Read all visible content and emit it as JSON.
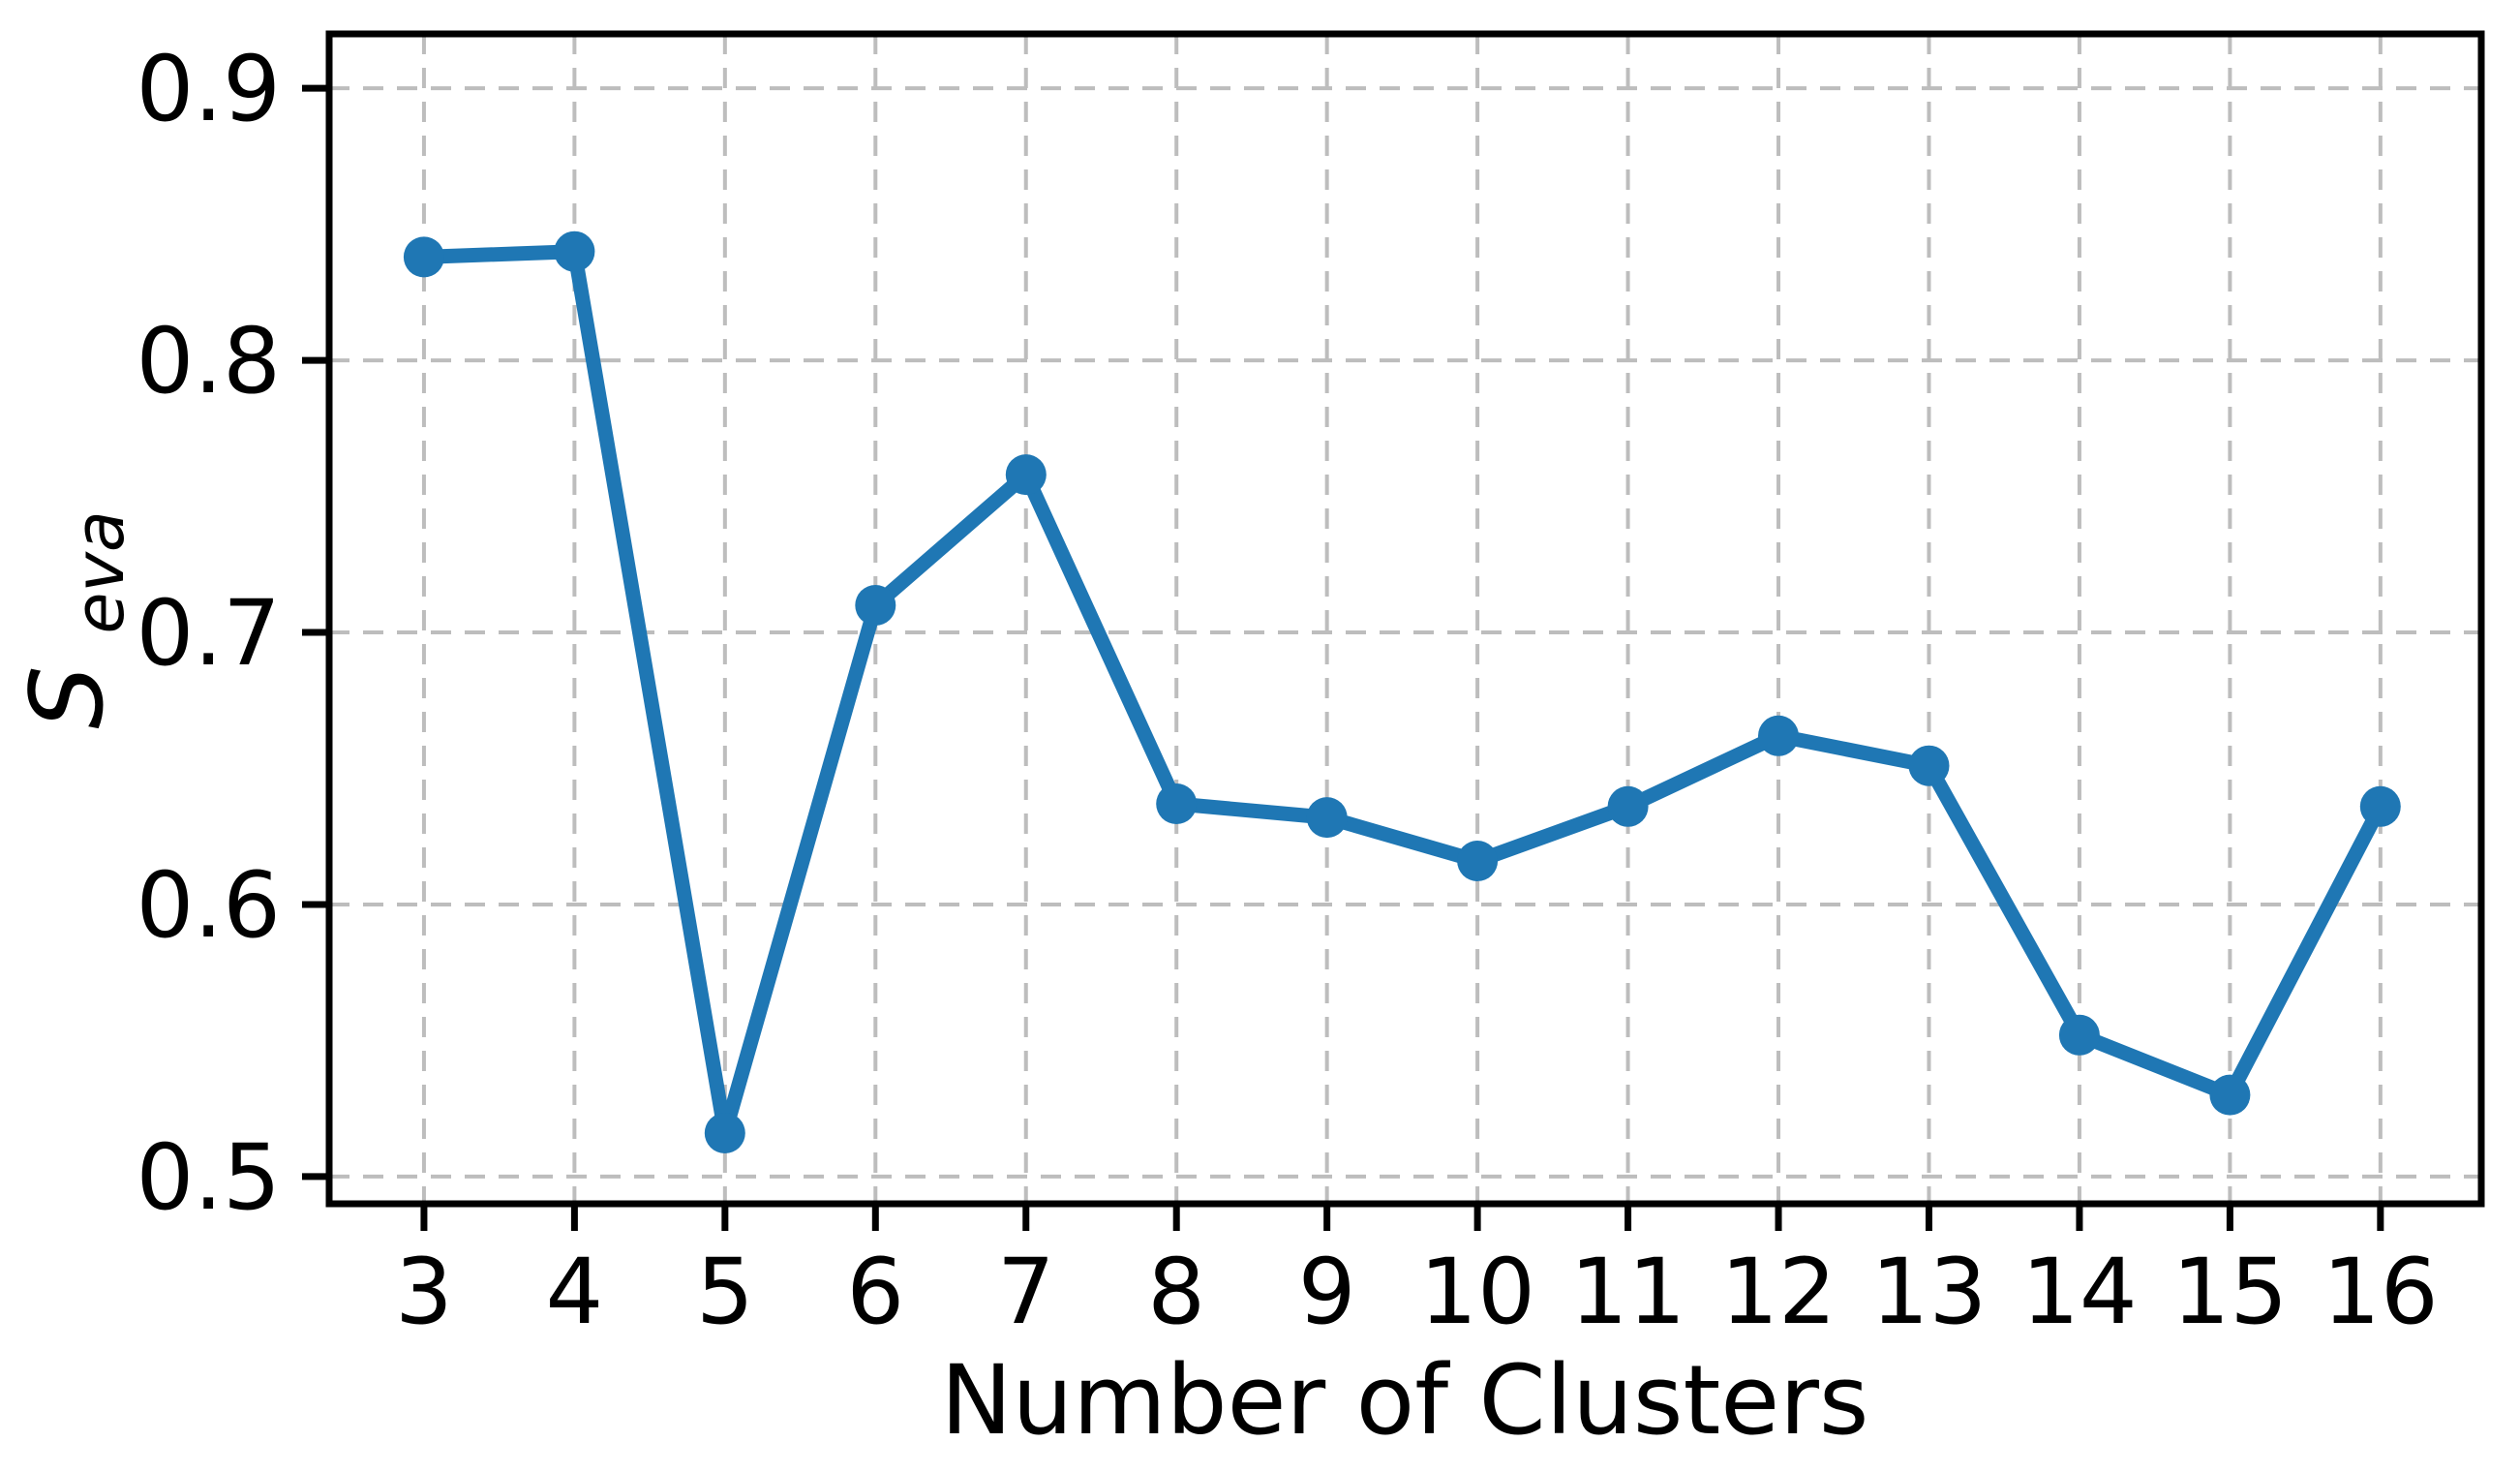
{
  "chart_data": {
    "type": "line",
    "title": "",
    "xlabel": "Number of Clusters",
    "ylabel": "S_eva",
    "ylabel_main": "S",
    "ylabel_sub": "eva",
    "x": [
      3,
      4,
      5,
      6,
      7,
      8,
      9,
      10,
      11,
      12,
      13,
      14,
      15,
      16
    ],
    "series": [
      {
        "name": "S_eva",
        "color": "#1f77b4",
        "marker": "circle",
        "values": [
          0.838,
          0.84,
          0.516,
          0.71,
          0.758,
          0.637,
          0.632,
          0.616,
          0.636,
          0.662,
          0.651,
          0.552,
          0.53,
          0.636
        ]
      }
    ],
    "xticks": [
      3,
      4,
      5,
      6,
      7,
      8,
      9,
      10,
      11,
      12,
      13,
      14,
      15,
      16
    ],
    "xtick_labels": [
      "3",
      "4",
      "5",
      "6",
      "7",
      "8",
      "9",
      "10",
      "11",
      "12",
      "13",
      "14",
      "15",
      "16"
    ],
    "yticks": [
      0.5,
      0.6,
      0.7,
      0.8,
      0.9
    ],
    "ytick_labels": [
      "0.5",
      "0.6",
      "0.7",
      "0.8",
      "0.9"
    ],
    "xlim": [
      2.37,
      16.67
    ],
    "ylim": [
      0.49,
      0.92
    ],
    "grid": true,
    "grid_style": "dashed",
    "grid_color": "#bdbdbd",
    "axis_color": "#000000",
    "background": "#ffffff",
    "legend": "none"
  }
}
